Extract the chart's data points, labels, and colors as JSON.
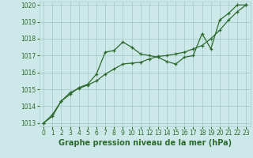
{
  "title": "Graphe pression niveau de la mer (hPa)",
  "bg_color": "#cce8e8",
  "grid_color": "#aacccc",
  "line_color": "#2d6a2d",
  "line1_y": [
    1013.0,
    1013.5,
    1014.3,
    1014.7,
    1015.1,
    1015.3,
    1015.9,
    1017.2,
    1017.3,
    1017.8,
    1017.5,
    1017.1,
    1017.0,
    1016.9,
    1016.65,
    1016.5,
    1016.9,
    1017.0,
    1018.3,
    1017.4,
    1019.1,
    1019.5,
    1020.0,
    1020.0
  ],
  "line2_y": [
    1013.0,
    1013.4,
    1014.3,
    1014.8,
    1015.05,
    1015.25,
    1015.5,
    1015.9,
    1016.2,
    1016.5,
    1016.55,
    1016.6,
    1016.8,
    1016.95,
    1017.0,
    1017.1,
    1017.2,
    1017.4,
    1017.6,
    1018.0,
    1018.5,
    1019.1,
    1019.6,
    1020.0
  ],
  "xlim": [
    -0.5,
    23.5
  ],
  "ylim": [
    1012.8,
    1020.2
  ],
  "yticks": [
    1013,
    1014,
    1015,
    1016,
    1017,
    1018,
    1019,
    1020
  ],
  "xticks": [
    0,
    1,
    2,
    3,
    4,
    5,
    6,
    7,
    8,
    9,
    10,
    11,
    12,
    13,
    14,
    15,
    16,
    17,
    18,
    19,
    20,
    21,
    22,
    23
  ],
  "tick_fontsize": 5.5,
  "label_fontsize": 7.0,
  "marker_size": 3,
  "linewidth": 0.9
}
